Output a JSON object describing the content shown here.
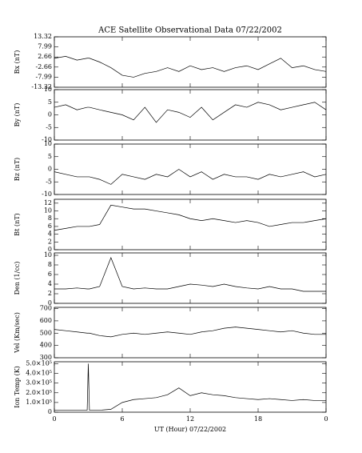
{
  "title": "ACE Satellite Observational Data   07/22/2002",
  "xlabel": "UT (Hour)   07/22/2002",
  "x": [
    0,
    1,
    2,
    2.9,
    3,
    3.1,
    4,
    5,
    6,
    7,
    8,
    9,
    10,
    11,
    12,
    13,
    14,
    15,
    16,
    17,
    18,
    19,
    20,
    21,
    22,
    23,
    24
  ],
  "xlim": [
    0,
    24
  ],
  "xticks": [
    0,
    6,
    12,
    18,
    {
      "value": 24,
      "label": "0"
    }
  ],
  "chart_data": [
    {
      "type": "line",
      "ylabel": "Bx (nT)",
      "ylim": [
        -13.32,
        13.32
      ],
      "yticks": [
        -13.32,
        -7.99,
        -2.66,
        2.66,
        7.99,
        13.32
      ],
      "values": [
        2,
        3,
        1,
        2,
        2,
        2,
        0,
        -3,
        -7,
        -8,
        -6,
        -5,
        -3,
        -5,
        -2,
        -4,
        -3,
        -5,
        -3,
        -2,
        -4,
        -1,
        2,
        -3,
        -2,
        -4,
        -5
      ]
    },
    {
      "type": "line",
      "ylabel": "By (nT)",
      "ylim": [
        -10,
        10
      ],
      "yticks": [
        -10,
        -5,
        0,
        5,
        10
      ],
      "values": [
        3,
        4,
        2,
        3,
        3,
        3,
        2,
        1,
        0,
        -2,
        3,
        -3,
        2,
        1,
        -1,
        3,
        -2,
        1,
        4,
        3,
        5,
        4,
        2,
        3,
        4,
        5,
        2
      ]
    },
    {
      "type": "line",
      "ylabel": "Bz (nT)",
      "ylim": [
        -10,
        10
      ],
      "yticks": [
        -10,
        -5,
        0,
        5,
        10
      ],
      "values": [
        -1,
        -2,
        -3,
        -3,
        -3,
        -3,
        -4,
        -6,
        -2,
        -3,
        -4,
        -2,
        -3,
        0,
        -3,
        -1,
        -4,
        -2,
        -3,
        -3,
        -4,
        -2,
        -3,
        -2,
        -1,
        -3,
        -2
      ]
    },
    {
      "type": "line",
      "ylabel": "Bt (nT)",
      "ylim": [
        0,
        13
      ],
      "yticks": [
        0,
        2,
        4,
        6,
        8,
        10,
        12
      ],
      "values": [
        5,
        5.5,
        6,
        6,
        6,
        6,
        6.5,
        11.5,
        11,
        10.5,
        10.5,
        10,
        9.5,
        9,
        8,
        7.5,
        8,
        7.5,
        7,
        7.5,
        7,
        6,
        6.5,
        7,
        7,
        7.5,
        8
      ]
    },
    {
      "type": "line",
      "ylabel": "Den (1/cc)",
      "ylim": [
        0,
        10.5
      ],
      "yticks": [
        0,
        2,
        4,
        6,
        8,
        10
      ],
      "values": [
        3,
        3,
        3.2,
        3,
        3,
        3,
        3.5,
        9.5,
        3.5,
        3,
        3.2,
        3,
        3,
        3.5,
        4,
        3.8,
        3.5,
        4,
        3.5,
        3.2,
        3,
        3.5,
        3,
        3,
        2.5,
        2.5,
        2.5
      ]
    },
    {
      "type": "line",
      "ylabel": "Vel (Km/sec)",
      "ylim": [
        300,
        710
      ],
      "yticks": [
        300,
        400,
        500,
        600,
        700
      ],
      "values": [
        530,
        520,
        510,
        500,
        500,
        500,
        480,
        470,
        490,
        500,
        490,
        500,
        510,
        500,
        490,
        510,
        520,
        540,
        550,
        540,
        530,
        520,
        510,
        520,
        500,
        490,
        490
      ]
    },
    {
      "type": "line",
      "ylabel": "Ion Temp (K)",
      "ylim": [
        0,
        520000
      ],
      "yticks": [
        0,
        {
          "value": 100000,
          "label": "1.0×10⁵"
        },
        {
          "value": 200000,
          "label": "2.0×10⁵"
        },
        {
          "value": 300000,
          "label": "3.0×10⁵"
        },
        {
          "value": 400000,
          "label": "4.0×10⁵"
        },
        {
          "value": 500000,
          "label": "5.0×10⁵"
        }
      ],
      "values": [
        20000,
        20000,
        20000,
        20000,
        500000,
        20000,
        20000,
        30000,
        100000,
        130000,
        140000,
        150000,
        180000,
        250000,
        170000,
        200000,
        180000,
        170000,
        150000,
        140000,
        130000,
        140000,
        130000,
        120000,
        130000,
        120000,
        120000
      ]
    }
  ]
}
